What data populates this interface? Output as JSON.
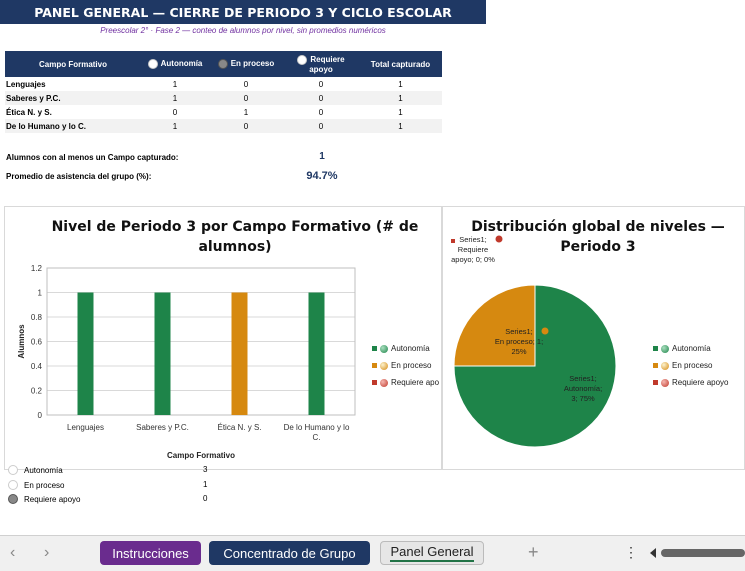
{
  "header": {
    "title": "PANEL GENERAL — CIERRE DE PERIODO 3 Y CICLO ESCOLAR",
    "subtitle": "Preescolar 2° · Fase 2 — conteo de alumnos por nivel, sin promedios numéricos"
  },
  "summary_table": {
    "headers": [
      "Campo Formativo",
      "Autonomía",
      "En proceso",
      "Requiere apoyo",
      "Total capturado"
    ],
    "rows": [
      {
        "campo": "Lenguajes",
        "autonomia": "1",
        "proceso": "0",
        "apoyo": "0",
        "total": "1"
      },
      {
        "campo": "Saberes y P.C.",
        "autonomia": "1",
        "proceso": "0",
        "apoyo": "0",
        "total": "1"
      },
      {
        "campo": "Ética N. y S.",
        "autonomia": "0",
        "proceso": "1",
        "apoyo": "0",
        "total": "1"
      },
      {
        "campo": "De lo Humano y lo C.",
        "autonomia": "1",
        "proceso": "0",
        "apoyo": "0",
        "total": "1"
      }
    ]
  },
  "stats": {
    "alumnos_label": "Alumnos con al menos un Campo capturado:",
    "alumnos_value": "1",
    "asistencia_label": "Promedio de asistencia del grupo (%):",
    "asistencia_value": "94.7%"
  },
  "chart_data": [
    {
      "type": "bar",
      "title": "Nivel de Periodo 3 por Campo Formativo (# de alumnos)",
      "xlabel": "Campo Formativo",
      "ylabel": "Alumnos",
      "categories": [
        "Lenguajes",
        "Saberes y P.C.",
        "Ética N. y S.",
        "De lo Humano y lo C."
      ],
      "values": [
        1,
        1,
        1,
        1
      ],
      "bar_colors": [
        "#1e8449",
        "#1e8449",
        "#d68910",
        "#1e8449"
      ],
      "ylim": [
        0,
        1.2
      ],
      "yticks": [
        "0",
        "0.2",
        "0.4",
        "0.6",
        "0.8",
        "1",
        "1.2"
      ],
      "legend": [
        "Autonomía",
        "En proceso",
        "Requiere apoyo"
      ],
      "legend_display": [
        "Autonomía",
        "En proceso",
        "Requiere apo"
      ],
      "legend_position": "right",
      "grid": true
    },
    {
      "type": "pie",
      "title": "Distribución global de niveles — Periodo 3",
      "slices": [
        {
          "label": "Autonomía",
          "value": 3,
          "percent": "75%",
          "color": "#1e8449"
        },
        {
          "label": "En proceso",
          "value": 1,
          "percent": "25%",
          "color": "#d68910"
        },
        {
          "label": "Requiere apoyo",
          "value": 0,
          "percent": "0%",
          "color": "#c0392b"
        }
      ],
      "data_labels": [
        [
          "Series1;",
          "Autonomía;",
          "3; 75%"
        ],
        [
          "Series1;",
          "En proceso; 1;",
          "25%"
        ],
        [
          "Series1;",
          "Requiere",
          "apoyo; 0; 0%"
        ]
      ],
      "legend": [
        "Autonomía",
        "En proceso",
        "Requiere apoyo"
      ],
      "legend_position": "right"
    }
  ],
  "legend_colors": {
    "autonomia": "#1e8449",
    "proceso": "#d68910",
    "apoyo": "#c0392b"
  },
  "lower_legend": {
    "items": [
      {
        "label": "Autonomía",
        "value": "3"
      },
      {
        "label": "En proceso",
        "value": "1"
      },
      {
        "label": "Requiere apoyo",
        "value": "0"
      }
    ]
  },
  "tabs": {
    "items": [
      {
        "label": "Instrucciones",
        "color": "#6a2c8e"
      },
      {
        "label": "Concentrado de Grupo",
        "color": "#1f3864"
      },
      {
        "label": "Panel General",
        "color": "#e6e6e6"
      }
    ],
    "add_icon": "+",
    "more_icon": "⋮"
  }
}
